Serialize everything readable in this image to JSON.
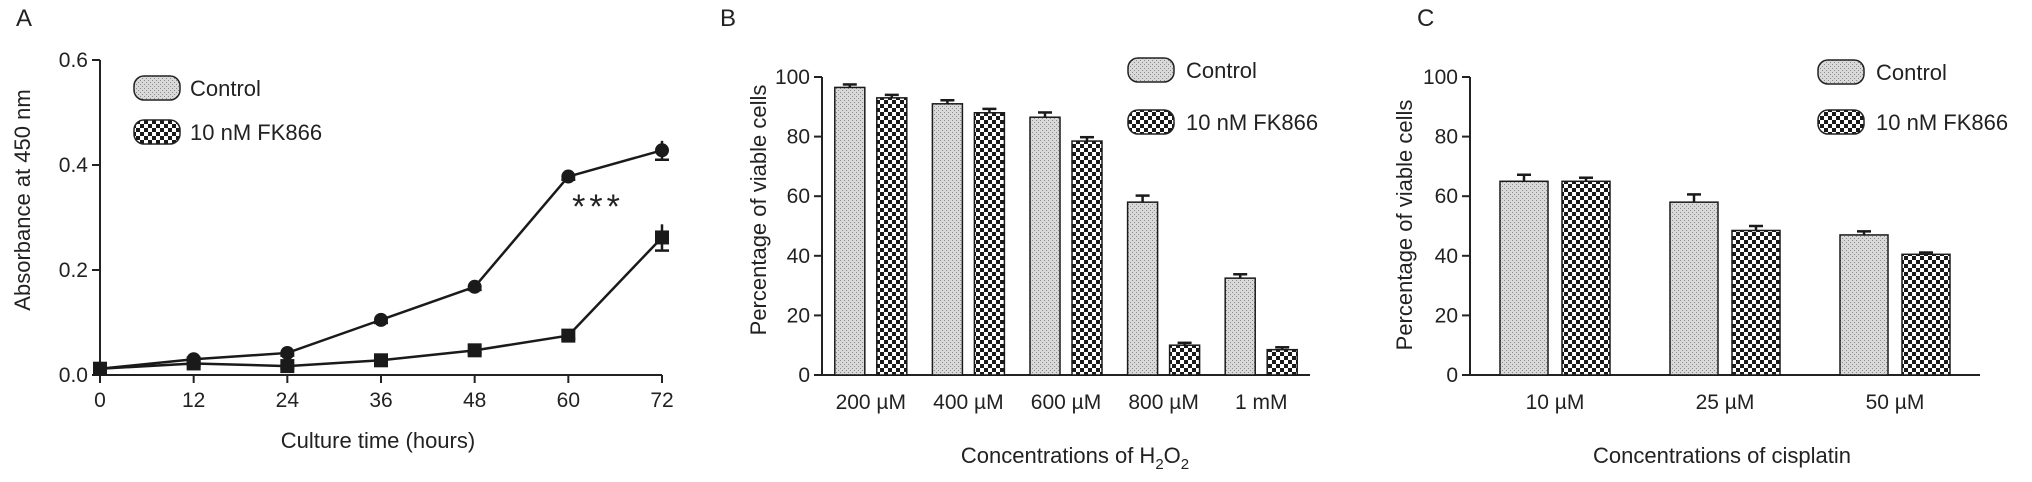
{
  "chart_data": [
    {
      "panel": "A",
      "type": "line",
      "xlabel": "Culture time (hours)",
      "ylabel": "Absorbance at 450 nm",
      "xlim": [
        0,
        72
      ],
      "ylim": [
        0,
        0.6
      ],
      "x_ticks": [
        "0",
        "12",
        "24",
        "36",
        "48",
        "60",
        "72"
      ],
      "y_ticks": [
        "0.0",
        "0.2",
        "0.4",
        "0.6"
      ],
      "x": [
        0,
        12,
        24,
        36,
        48,
        60,
        72
      ],
      "series": [
        {
          "name": "Control",
          "values": [
            0.012,
            0.03,
            0.042,
            0.105,
            0.168,
            0.378,
            0.428
          ],
          "errors": [
            0.005,
            0.005,
            0.005,
            0.006,
            0.006,
            0.006,
            0.018
          ]
        },
        {
          "name": "10 nM FK866",
          "values": [
            0.012,
            0.022,
            0.017,
            0.028,
            0.047,
            0.075,
            0.262
          ],
          "errors": [
            0.004,
            0.004,
            0.004,
            0.004,
            0.005,
            0.006,
            0.025
          ]
        }
      ],
      "annotation": "***",
      "legend": "top-left"
    },
    {
      "panel": "B",
      "type": "bar",
      "xlabel": "Concentrations of H",
      "xlabel_sub1": "2",
      "xlabel_mid": "O",
      "xlabel_sub2": "2",
      "ylabel": "Percentage of viable cells",
      "ylim": [
        0,
        100
      ],
      "y_ticks": [
        "0",
        "20",
        "40",
        "60",
        "80",
        "100"
      ],
      "categories": [
        "200 µM",
        "400 µM",
        "600 µM",
        "800 µM",
        "1 mM"
      ],
      "series": [
        {
          "name": "Control",
          "values": [
            96.5,
            91,
            86.5,
            58,
            32.5
          ],
          "errors": [
            1.0,
            1.2,
            1.6,
            2.2,
            1.3
          ]
        },
        {
          "name": "10 nM FK866",
          "values": [
            93,
            88,
            78.5,
            10,
            8.5
          ],
          "errors": [
            1.0,
            1.3,
            1.3,
            0.8,
            0.8
          ]
        }
      ],
      "legend": "top-right"
    },
    {
      "panel": "C",
      "type": "bar",
      "xlabel": "Concentrations of cisplatin",
      "ylabel": "Percentage of viable cells",
      "ylim": [
        0,
        100
      ],
      "y_ticks": [
        "0",
        "20",
        "40",
        "60",
        "80",
        "100"
      ],
      "categories": [
        "10 µM",
        "25 µM",
        "50 µM"
      ],
      "series": [
        {
          "name": "Control",
          "values": [
            65,
            58,
            47
          ],
          "errors": [
            2.2,
            2.6,
            1.2
          ]
        },
        {
          "name": "10 nM FK866",
          "values": [
            65,
            48.5,
            40.5
          ],
          "errors": [
            1.2,
            1.5,
            0.6
          ]
        }
      ],
      "legend": "top-right"
    }
  ]
}
